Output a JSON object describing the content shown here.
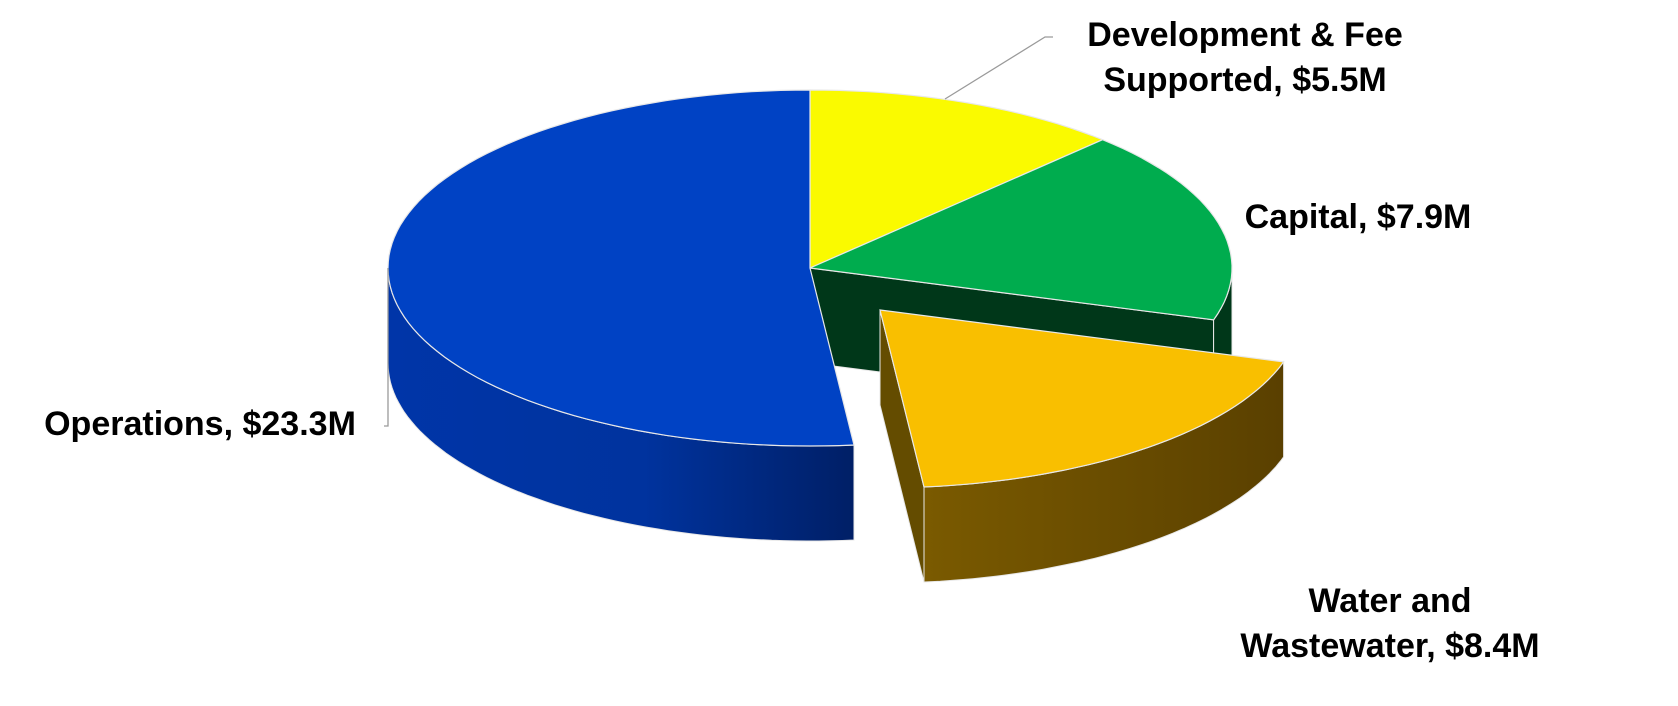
{
  "chart_data": {
    "type": "pie",
    "style": "3d-exploded",
    "title": "",
    "slices": [
      {
        "label": "Development & Fee Supported",
        "value": 5.5,
        "value_label": "$5.5M",
        "label_lines": [
          "Development & Fee",
          "Supported, $5.5M"
        ],
        "color": "#FAFA00",
        "exploded": false
      },
      {
        "label": "Capital",
        "value": 7.9,
        "value_label": "$7.9M",
        "label_lines": [
          "Capital, $7.9M"
        ],
        "color": "#00AC4E",
        "exploded": false
      },
      {
        "label": "Water and Wastewater",
        "value": 8.4,
        "value_label": "$8.4M",
        "label_lines": [
          "Water and",
          "Wastewater, $8.4M"
        ],
        "color": "#F9BF00",
        "exploded": true
      },
      {
        "label": "Operations",
        "value": 23.3,
        "value_label": "$23.3M",
        "label_lines": [
          "Operations, $23.3M"
        ],
        "color": "#0042C4",
        "exploded": false
      }
    ]
  }
}
